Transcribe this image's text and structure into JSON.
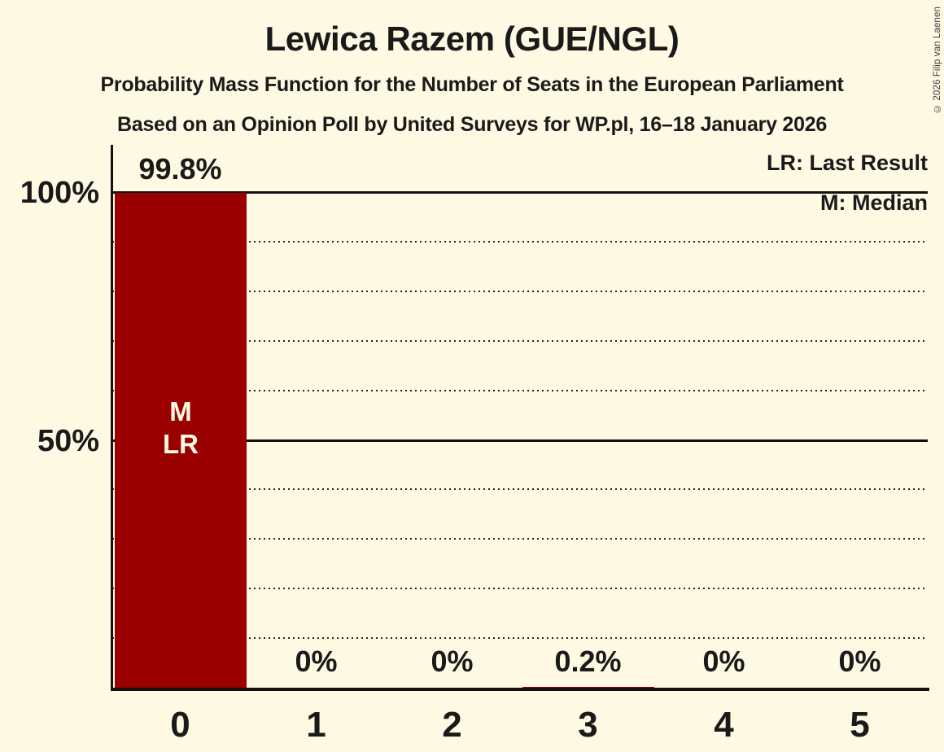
{
  "title": "Lewica Razem (GUE/NGL)",
  "subtitles": [
    "Probability Mass Function for the Number of Seats in the European Parliament",
    "Based on an Opinion Poll by United Surveys for WP.pl, 16–18 January 2026"
  ],
  "copyright": "© 2026 Filip van Laenen",
  "legend": {
    "last_result": "LR: Last Result",
    "median": "M: Median"
  },
  "colors": {
    "background": "#FDF9E2",
    "bar": "#9A0000",
    "text": "#1A1A1A",
    "bar_label_text": "#FDF9E2",
    "grid": "#111111"
  },
  "chart_data": {
    "type": "bar",
    "title": "Lewica Razem (GUE/NGL)",
    "categories": [
      "0",
      "1",
      "2",
      "3",
      "4",
      "5"
    ],
    "values": [
      99.8,
      0,
      0,
      0.2,
      0,
      0
    ],
    "value_labels": [
      "99.8%",
      "0%",
      "0%",
      "0.2%",
      "0%",
      "0%"
    ],
    "xlabel": "",
    "ylabel": "",
    "ylim": [
      0,
      100
    ],
    "y_ticks": [
      {
        "label": "100%",
        "value": 100
      },
      {
        "label": "50%",
        "value": 50
      }
    ],
    "gridlines": {
      "dotted_every_percent": 10,
      "solid_at_percent": [
        50,
        100
      ]
    },
    "legend_position": "top-right",
    "annotations": [
      {
        "category": "0",
        "lines": [
          "M",
          "LR"
        ]
      }
    ]
  }
}
